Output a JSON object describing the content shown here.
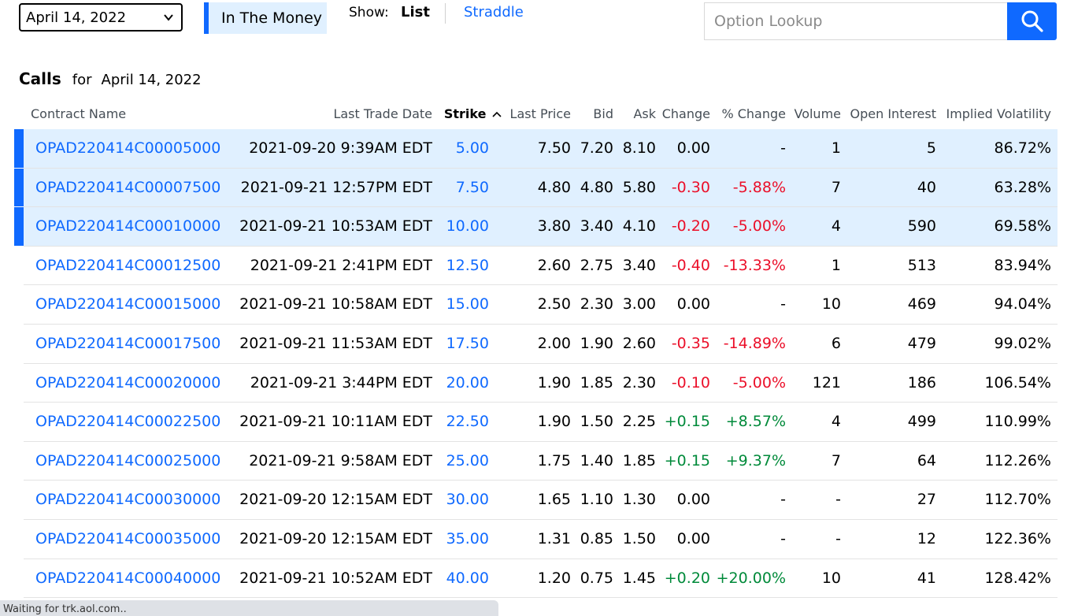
{
  "controls": {
    "expiration": "April 14, 2022",
    "in_the_money": "In The Money",
    "show_label": "Show:",
    "list_label": "List",
    "straddle_label": "Straddle",
    "lookup_placeholder": "Option Lookup"
  },
  "heading": {
    "title": "Calls",
    "for": "for",
    "date": "April 14, 2022"
  },
  "columns": {
    "contract": "Contract Name",
    "last_trade": "Last Trade Date",
    "strike": "Strike",
    "last_price": "Last Price",
    "bid": "Bid",
    "ask": "Ask",
    "change": "Change",
    "pct_change": "% Change",
    "volume": "Volume",
    "open_interest": "Open Interest",
    "iv": "Implied Volatility"
  },
  "rows": [
    {
      "contract": "OPAD220414C00005000",
      "date": "2021-09-20 9:39AM EDT",
      "strike": "5.00",
      "last": "7.50",
      "bid": "7.20",
      "ask": "8.10",
      "change": "0.00",
      "pct": "-",
      "volume": "1",
      "oi": "5",
      "iv": "86.72%",
      "itm": true,
      "dir": "flat"
    },
    {
      "contract": "OPAD220414C00007500",
      "date": "2021-09-21 12:57PM EDT",
      "strike": "7.50",
      "last": "4.80",
      "bid": "4.80",
      "ask": "5.80",
      "change": "-0.30",
      "pct": "-5.88%",
      "volume": "7",
      "oi": "40",
      "iv": "63.28%",
      "itm": true,
      "dir": "neg"
    },
    {
      "contract": "OPAD220414C00010000",
      "date": "2021-09-21 10:53AM EDT",
      "strike": "10.00",
      "last": "3.80",
      "bid": "3.40",
      "ask": "4.10",
      "change": "-0.20",
      "pct": "-5.00%",
      "volume": "4",
      "oi": "590",
      "iv": "69.58%",
      "itm": true,
      "dir": "neg"
    },
    {
      "contract": "OPAD220414C00012500",
      "date": "2021-09-21 2:41PM EDT",
      "strike": "12.50",
      "last": "2.60",
      "bid": "2.75",
      "ask": "3.40",
      "change": "-0.40",
      "pct": "-13.33%",
      "volume": "1",
      "oi": "513",
      "iv": "83.94%",
      "itm": false,
      "dir": "neg"
    },
    {
      "contract": "OPAD220414C00015000",
      "date": "2021-09-21 10:58AM EDT",
      "strike": "15.00",
      "last": "2.50",
      "bid": "2.30",
      "ask": "3.00",
      "change": "0.00",
      "pct": "-",
      "volume": "10",
      "oi": "469",
      "iv": "94.04%",
      "itm": false,
      "dir": "flat"
    },
    {
      "contract": "OPAD220414C00017500",
      "date": "2021-09-21 11:53AM EDT",
      "strike": "17.50",
      "last": "2.00",
      "bid": "1.90",
      "ask": "2.60",
      "change": "-0.35",
      "pct": "-14.89%",
      "volume": "6",
      "oi": "479",
      "iv": "99.02%",
      "itm": false,
      "dir": "neg"
    },
    {
      "contract": "OPAD220414C00020000",
      "date": "2021-09-21 3:44PM EDT",
      "strike": "20.00",
      "last": "1.90",
      "bid": "1.85",
      "ask": "2.30",
      "change": "-0.10",
      "pct": "-5.00%",
      "volume": "121",
      "oi": "186",
      "iv": "106.54%",
      "itm": false,
      "dir": "neg"
    },
    {
      "contract": "OPAD220414C00022500",
      "date": "2021-09-21 10:11AM EDT",
      "strike": "22.50",
      "last": "1.90",
      "bid": "1.50",
      "ask": "2.25",
      "change": "+0.15",
      "pct": "+8.57%",
      "volume": "4",
      "oi": "499",
      "iv": "110.99%",
      "itm": false,
      "dir": "pos"
    },
    {
      "contract": "OPAD220414C00025000",
      "date": "2021-09-21 9:58AM EDT",
      "strike": "25.00",
      "last": "1.75",
      "bid": "1.40",
      "ask": "1.85",
      "change": "+0.15",
      "pct": "+9.37%",
      "volume": "7",
      "oi": "64",
      "iv": "112.26%",
      "itm": false,
      "dir": "pos"
    },
    {
      "contract": "OPAD220414C00030000",
      "date": "2021-09-20 12:15AM EDT",
      "strike": "30.00",
      "last": "1.65",
      "bid": "1.10",
      "ask": "1.30",
      "change": "0.00",
      "pct": "-",
      "volume": "-",
      "oi": "27",
      "iv": "112.70%",
      "itm": false,
      "dir": "flat"
    },
    {
      "contract": "OPAD220414C00035000",
      "date": "2021-09-20 12:15AM EDT",
      "strike": "35.00",
      "last": "1.31",
      "bid": "0.85",
      "ask": "1.50",
      "change": "0.00",
      "pct": "-",
      "volume": "-",
      "oi": "12",
      "iv": "122.36%",
      "itm": false,
      "dir": "flat"
    },
    {
      "contract": "OPAD220414C00040000",
      "date": "2021-09-21 10:52AM EDT",
      "strike": "40.00",
      "last": "1.20",
      "bid": "0.75",
      "ask": "1.45",
      "change": "+0.20",
      "pct": "+20.00%",
      "volume": "10",
      "oi": "41",
      "iv": "128.42%",
      "itm": false,
      "dir": "pos"
    }
  ],
  "statusbar": "Waiting for trk.aol.com.."
}
